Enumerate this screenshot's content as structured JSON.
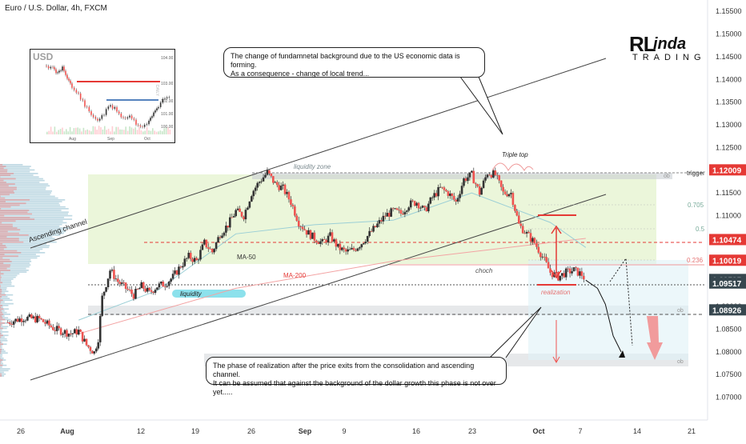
{
  "header": {
    "title": "Euro / U.S. Dollar, 4h, FXCM"
  },
  "brand": {
    "mark": "RL",
    "name": "inda",
    "sub": "TRADING"
  },
  "callouts": {
    "top": "The change of fundamnetal background due to the US economic data is forming.\nAs a consequence - change of local trend...",
    "bottom": "The phase of realization after the price exits from the consolidation and ascending channel.\nIt can be assumed that against the background of the dollar growth this phase is not over yet....."
  },
  "annotations": {
    "ascending_channel": "Ascending channel",
    "liquidity_zone": "liquidity zone",
    "triple_top": "Triple top",
    "liquidity": "liquidity",
    "ma50": "MA-50",
    "ma200": "MA-200",
    "choch": "choch",
    "realization": "realization",
    "trigger": "trigger",
    "fib_0705": "0.705",
    "fib_05": "0.5",
    "fib_0236": "0.236",
    "ob1": "ob",
    "ob2": "ob",
    "ob3": "ob"
  },
  "inset": {
    "label": "USD",
    "tf": "DAILY",
    "y_ticks": [
      "104.00",
      "103.00",
      "102.00",
      "101.00",
      "100.00"
    ],
    "x_ticks": [
      "Aug",
      "Sep",
      "Oct"
    ]
  },
  "chart_data": {
    "type": "candlestick",
    "title": "Euro / U.S. Dollar, 4h, FXCM",
    "ylim": [
      1.065,
      1.1575
    ],
    "y_ticks": [
      "1.15500",
      "1.15000",
      "1.14500",
      "1.14000",
      "1.13500",
      "1.13000",
      "1.12500",
      "1.12000",
      "1.11500",
      "1.11000",
      "1.10500",
      "1.10000",
      "1.09500",
      "1.09000",
      "1.08500",
      "1.08000",
      "1.07500",
      "1.07000"
    ],
    "x_ticks": [
      "26",
      "Aug",
      "12",
      "19",
      "26",
      "Sep",
      "9",
      "16",
      "23",
      "Oct",
      "7",
      "14",
      "21"
    ],
    "price_labels": [
      {
        "value": 1.12009,
        "text": "1.12009",
        "color": "#e53935"
      },
      {
        "value": 1.10474,
        "text": "1.10474",
        "color": "#e53935"
      },
      {
        "value": 1.10019,
        "text": "1.10019",
        "color": "#e53935"
      },
      {
        "value": 1.09595,
        "text": "1.09595",
        "color": "#37474f"
      },
      {
        "value": 1.09517,
        "text": "1.09517",
        "color": "#37474f"
      },
      {
        "value": 1.08926,
        "text": "1.08926",
        "color": "#37474f"
      }
    ],
    "close_path": [
      [
        2,
        1.0865
      ],
      [
        6,
        1.0875
      ],
      [
        10,
        1.0872
      ],
      [
        14,
        1.085
      ],
      [
        18,
        1.084
      ],
      [
        20,
        1.0846
      ],
      [
        22,
        1.0815
      ],
      [
        24,
        1.0799
      ],
      [
        25,
        1.083
      ],
      [
        26,
        1.092
      ],
      [
        28,
        1.098
      ],
      [
        30,
        1.0955
      ],
      [
        32,
        1.094
      ],
      [
        34,
        1.0925
      ],
      [
        36,
        1.0945
      ],
      [
        38,
        1.093
      ],
      [
        40,
        1.0945
      ],
      [
        42,
        1.095
      ],
      [
        44,
        1.0965
      ],
      [
        46,
        1.099
      ],
      [
        48,
        1.101
      ],
      [
        50,
        1.1
      ],
      [
        52,
        1.104
      ],
      [
        54,
        1.102
      ],
      [
        56,
        1.106
      ],
      [
        58,
        1.108
      ],
      [
        60,
        1.111
      ],
      [
        62,
        1.11
      ],
      [
        64,
        1.115
      ],
      [
        66,
        1.1175
      ],
      [
        68,
        1.1195
      ],
      [
        70,
        1.117
      ],
      [
        72,
        1.116
      ],
      [
        74,
        1.113
      ],
      [
        76,
        1.1085
      ],
      [
        78,
        1.1065
      ],
      [
        80,
        1.105
      ],
      [
        82,
        1.104
      ],
      [
        84,
        1.1055
      ],
      [
        86,
        1.103
      ],
      [
        88,
        1.102
      ],
      [
        90,
        1.1025
      ],
      [
        92,
        1.104
      ],
      [
        94,
        1.106
      ],
      [
        96,
        1.108
      ],
      [
        98,
        1.11
      ],
      [
        100,
        1.111
      ],
      [
        102,
        1.1105
      ],
      [
        104,
        1.1125
      ],
      [
        106,
        1.113
      ],
      [
        108,
        1.111
      ],
      [
        110,
        1.114
      ],
      [
        112,
        1.116
      ],
      [
        114,
        1.115
      ],
      [
        116,
        1.113
      ],
      [
        118,
        1.118
      ],
      [
        120,
        1.119
      ],
      [
        122,
        1.115
      ],
      [
        124,
        1.1195
      ],
      [
        126,
        1.119
      ],
      [
        128,
        1.115
      ],
      [
        130,
        1.115
      ],
      [
        132,
        1.108
      ],
      [
        134,
        1.106
      ],
      [
        136,
        1.104
      ],
      [
        138,
        1.101
      ],
      [
        140,
        1.0975
      ],
      [
        142,
        1.0965
      ],
      [
        144,
        1.0975
      ],
      [
        146,
        1.098
      ],
      [
        148,
        1.097
      ],
      [
        149,
        1.0958
      ]
    ],
    "projection": [
      [
        149,
        1.0958
      ],
      [
        152,
        1.094
      ],
      [
        154,
        1.0905
      ],
      [
        156,
        1.0835
      ],
      [
        158,
        1.08
      ]
    ],
    "ma50": [
      [
        20,
        1.087
      ],
      [
        40,
        1.0935
      ],
      [
        60,
        1.106
      ],
      [
        80,
        1.108
      ],
      [
        100,
        1.109
      ],
      [
        120,
        1.115
      ],
      [
        140,
        1.1085
      ],
      [
        149,
        1.103
      ]
    ],
    "ma200": [
      [
        20,
        1.084
      ],
      [
        60,
        1.094
      ],
      [
        100,
        1.1
      ],
      [
        149,
        1.105
      ]
    ],
    "x_range": [
      0,
      180
    ]
  }
}
